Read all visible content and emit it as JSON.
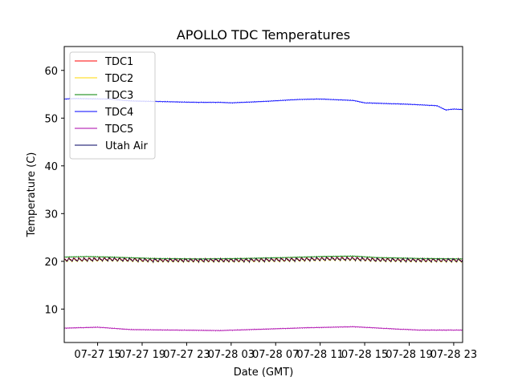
{
  "chart_data": {
    "type": "line",
    "title": "APOLLO TDC Temperatures",
    "xlabel": "Date (GMT)",
    "ylabel": "Temperature (C)",
    "xlim": [
      12,
      47.8
    ],
    "ylim": [
      3,
      65
    ],
    "x_ticks": [
      {
        "x": 15,
        "label": "07-27 15"
      },
      {
        "x": 19,
        "label": "07-27 19"
      },
      {
        "x": 23,
        "label": "07-27 23"
      },
      {
        "x": 27,
        "label": "07-28 03"
      },
      {
        "x": 31,
        "label": "07-28 07"
      },
      {
        "x": 35,
        "label": "07-28 11"
      },
      {
        "x": 39,
        "label": "07-28 15"
      },
      {
        "x": 43,
        "label": "07-28 19"
      },
      {
        "x": 47,
        "label": "07-28 23"
      }
    ],
    "y_ticks": [
      10,
      20,
      30,
      40,
      50,
      60
    ],
    "legend_position": "top-left",
    "series": [
      {
        "name": "TDC1",
        "color": "#ff0000",
        "ripple": 0.35,
        "x": [
          12,
          16,
          20,
          24,
          28,
          32,
          36,
          38,
          40,
          44,
          47.8
        ],
        "y": [
          20.4,
          20.5,
          20.3,
          20.3,
          20.3,
          20.4,
          20.6,
          20.6,
          20.4,
          20.3,
          20.3
        ]
      },
      {
        "name": "TDC2",
        "color": "#ffd700",
        "ripple": 0.35,
        "x": [
          12,
          16,
          20,
          24,
          28,
          32,
          36,
          38,
          40,
          44,
          47.8
        ],
        "y": [
          20.2,
          20.3,
          20.1,
          20.1,
          20.1,
          20.2,
          20.4,
          20.4,
          20.2,
          20.1,
          20.1
        ]
      },
      {
        "name": "TDC3",
        "color": "#008000",
        "ripple": 0,
        "x": [
          12,
          14,
          16,
          20,
          24,
          28,
          32,
          35,
          38,
          40,
          44,
          47.8
        ],
        "y": [
          20.9,
          21.0,
          20.9,
          20.6,
          20.5,
          20.6,
          20.8,
          21.0,
          21.1,
          20.8,
          20.6,
          20.5
        ]
      },
      {
        "name": "TDC4",
        "color": "#0000ff",
        "ripple": 0,
        "x": [
          12,
          13,
          16,
          18,
          20,
          24,
          26,
          27,
          30,
          33,
          35,
          38,
          39,
          43,
          45.5,
          46.3,
          47,
          47.8
        ],
        "y": [
          54.0,
          54.1,
          54.0,
          53.6,
          53.5,
          53.3,
          53.3,
          53.2,
          53.5,
          53.9,
          54.0,
          53.7,
          53.2,
          52.9,
          52.6,
          51.7,
          51.9,
          51.8
        ]
      },
      {
        "name": "TDC5",
        "color": "#aa00aa",
        "ripple": 0,
        "x": [
          12,
          15,
          18,
          22,
          26,
          30,
          34,
          38,
          42,
          44,
          47.8
        ],
        "y": [
          6.0,
          6.2,
          5.7,
          5.6,
          5.5,
          5.8,
          6.1,
          6.3,
          5.8,
          5.6,
          5.6
        ]
      },
      {
        "name": "Utah Air",
        "color": "#000060",
        "ripple": 0.35,
        "x": [
          12,
          16,
          20,
          24,
          28,
          32,
          36,
          38,
          40,
          44,
          47.8
        ],
        "y": [
          20.3,
          20.4,
          20.2,
          20.2,
          20.2,
          20.3,
          20.5,
          20.5,
          20.3,
          20.2,
          20.2
        ]
      }
    ]
  }
}
